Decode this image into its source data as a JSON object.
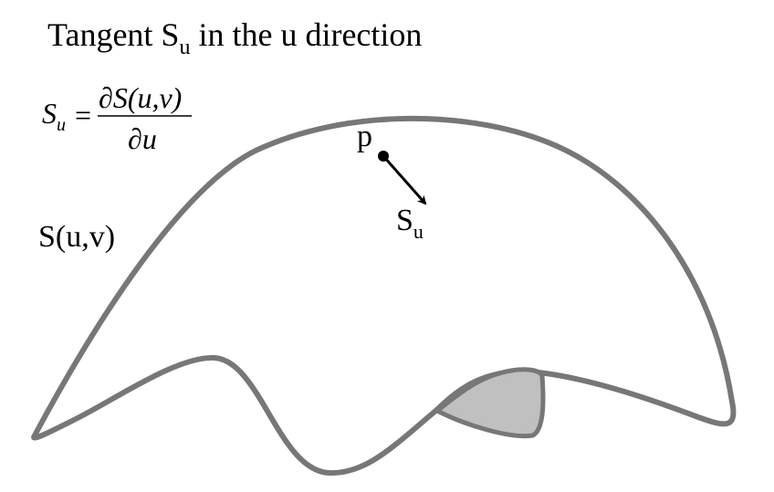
{
  "title": {
    "prefix": "Tangent S",
    "subscript": "u",
    "suffix": " in the u direction"
  },
  "formula": {
    "lhs": "S",
    "lhs_subscript": "u",
    "equals": "=",
    "numerator": "∂S(u,v)",
    "denominator": "∂u"
  },
  "surface_label": "S(u,v)",
  "point_label": "p",
  "tangent_label": {
    "base": "S",
    "subscript": "u"
  },
  "colors": {
    "outline": "#777777",
    "fold_fill": "#c0c0c0",
    "arrow": "#000000"
  }
}
